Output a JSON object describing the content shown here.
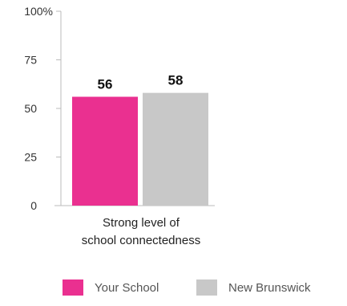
{
  "chart_data": {
    "type": "bar",
    "categories": [
      "Strong level of school connectedness"
    ],
    "category_label_lines": [
      "Strong level of",
      "school connectedness"
    ],
    "series": [
      {
        "name": "Your School",
        "values": [
          56
        ],
        "color": "#ea3090",
        "label": "56"
      },
      {
        "name": "New Brunswick",
        "values": [
          58
        ],
        "color": "#c8c8c8",
        "label": "58"
      }
    ],
    "y_ticks": [
      "0",
      "25",
      "50",
      "75",
      "100%"
    ],
    "ylim": [
      0,
      100
    ],
    "title": "",
    "xlabel": "",
    "ylabel": "",
    "grid": false,
    "legend_position": "bottom"
  }
}
